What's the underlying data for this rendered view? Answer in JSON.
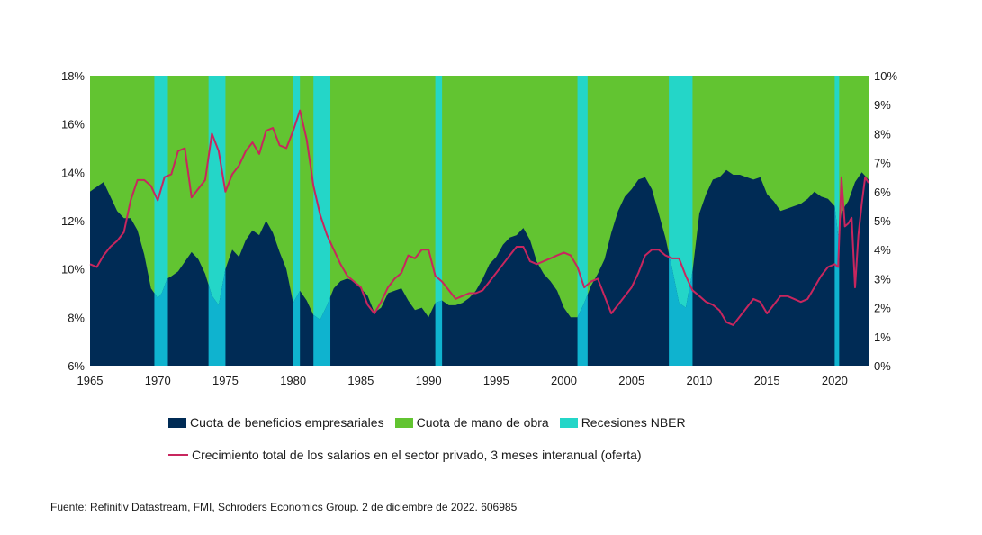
{
  "colors": {
    "profit_share": "#002b55",
    "labour_share": "#62c431",
    "recession": "#24d6c8",
    "recession_overlap": "#0fb3cf",
    "wage_line": "#c8265e"
  },
  "chart_data": {
    "type": "area",
    "title": "",
    "x_start": 1965,
    "x_end": 2022.5,
    "left_axis": {
      "min": 6,
      "max": 18,
      "ticks": [
        "6%",
        "8%",
        "10%",
        "12%",
        "14%",
        "16%",
        "18%"
      ]
    },
    "right_axis": {
      "min": 0,
      "max": 10,
      "ticks": [
        "0%",
        "1%",
        "2%",
        "3%",
        "4%",
        "5%",
        "6%",
        "7%",
        "8%",
        "9%",
        "10%"
      ]
    },
    "x_ticks": [
      "1965",
      "1970",
      "1975",
      "1980",
      "1985",
      "1990",
      "1995",
      "2000",
      "2005",
      "2010",
      "2015",
      "2020"
    ],
    "recessions": [
      [
        1969.75,
        1970.75
      ],
      [
        1973.75,
        1975.0
      ],
      [
        1980.0,
        1980.5
      ],
      [
        1981.5,
        1982.75
      ],
      [
        1990.5,
        1991.0
      ],
      [
        2001.0,
        2001.75
      ],
      [
        2007.75,
        2009.5
      ],
      [
        2020.0,
        2020.33
      ]
    ],
    "series": [
      {
        "name": "Cuota de beneficios empresariales",
        "axis": "left",
        "x": [
          1965.0,
          1965.5,
          1966.0,
          1966.5,
          1967.0,
          1967.5,
          1968.0,
          1968.5,
          1969.0,
          1969.5,
          1970.0,
          1970.3,
          1970.7,
          1971.0,
          1971.5,
          1972.0,
          1972.5,
          1973.0,
          1973.5,
          1974.0,
          1974.5,
          1975.0,
          1975.5,
          1976.0,
          1976.5,
          1977.0,
          1977.5,
          1978.0,
          1978.5,
          1979.0,
          1979.5,
          1980.0,
          1980.5,
          1981.0,
          1981.5,
          1982.0,
          1982.5,
          1983.0,
          1983.5,
          1984.0,
          1984.5,
          1985.0,
          1985.5,
          1986.0,
          1986.5,
          1987.0,
          1987.5,
          1988.0,
          1988.5,
          1989.0,
          1989.5,
          1990.0,
          1990.5,
          1991.0,
          1991.5,
          1992.0,
          1992.5,
          1993.0,
          1993.5,
          1994.0,
          1994.5,
          1995.0,
          1995.5,
          1996.0,
          1996.5,
          1997.0,
          1997.5,
          1998.0,
          1998.5,
          1999.0,
          1999.5,
          2000.0,
          2000.5,
          2001.0,
          2001.5,
          2002.0,
          2002.5,
          2003.0,
          2003.5,
          2004.0,
          2004.5,
          2005.0,
          2005.5,
          2006.0,
          2006.5,
          2007.0,
          2007.5,
          2008.0,
          2008.5,
          2009.0,
          2009.5,
          2010.0,
          2010.5,
          2011.0,
          2011.5,
          2012.0,
          2012.5,
          2013.0,
          2013.5,
          2014.0,
          2014.5,
          2015.0,
          2015.5,
          2016.0,
          2016.5,
          2017.0,
          2017.5,
          2018.0,
          2018.5,
          2019.0,
          2019.5,
          2020.0,
          2020.25,
          2020.5,
          2020.75,
          2021.0,
          2021.5,
          2022.0,
          2022.5
        ],
        "values": [
          13.2,
          13.4,
          13.6,
          13.0,
          12.4,
          12.1,
          12.1,
          11.6,
          10.6,
          9.2,
          8.8,
          9.0,
          9.6,
          9.7,
          9.9,
          10.3,
          10.7,
          10.4,
          9.8,
          8.9,
          8.5,
          10.0,
          10.8,
          10.5,
          11.2,
          11.6,
          11.4,
          12.0,
          11.5,
          10.7,
          10.0,
          8.6,
          9.1,
          8.7,
          8.1,
          7.9,
          8.5,
          9.2,
          9.5,
          9.6,
          9.5,
          9.2,
          8.9,
          8.2,
          8.4,
          9.0,
          9.1,
          9.2,
          8.7,
          8.3,
          8.4,
          8.0,
          8.6,
          8.7,
          8.5,
          8.5,
          8.6,
          8.8,
          9.1,
          9.6,
          10.2,
          10.5,
          11.0,
          11.3,
          11.4,
          11.7,
          11.2,
          10.3,
          9.8,
          9.5,
          9.1,
          8.4,
          8.0,
          8.0,
          8.6,
          9.3,
          9.8,
          10.4,
          11.5,
          12.4,
          13.0,
          13.3,
          13.7,
          13.8,
          13.3,
          12.3,
          11.3,
          10.0,
          8.6,
          8.4,
          9.9,
          12.3,
          13.1,
          13.7,
          13.8,
          14.1,
          13.9,
          13.9,
          13.8,
          13.7,
          13.8,
          13.1,
          12.8,
          12.4,
          12.5,
          12.6,
          12.7,
          12.9,
          13.2,
          13.0,
          12.9,
          12.6,
          11.4,
          12.3,
          12.6,
          12.8,
          13.6,
          14.0,
          13.7
        ]
      },
      {
        "name": "Crecimiento total de los salarios en el sector privado, 3 meses interanual (oferta)",
        "axis": "right",
        "x": [
          1965.0,
          1965.5,
          1966.0,
          1966.5,
          1967.0,
          1967.5,
          1968.0,
          1968.5,
          1969.0,
          1969.5,
          1970.0,
          1970.5,
          1971.0,
          1971.5,
          1972.0,
          1972.5,
          1973.0,
          1973.5,
          1974.0,
          1974.5,
          1975.0,
          1975.5,
          1976.0,
          1976.5,
          1977.0,
          1977.5,
          1978.0,
          1978.5,
          1979.0,
          1979.5,
          1980.0,
          1980.5,
          1981.0,
          1981.5,
          1982.0,
          1982.5,
          1983.0,
          1983.5,
          1984.0,
          1984.5,
          1985.0,
          1985.5,
          1986.0,
          1986.5,
          1987.0,
          1987.5,
          1988.0,
          1988.5,
          1989.0,
          1989.5,
          1990.0,
          1990.5,
          1991.0,
          1991.5,
          1992.0,
          1992.5,
          1993.0,
          1993.5,
          1994.0,
          1994.5,
          1995.0,
          1995.5,
          1996.0,
          1996.5,
          1997.0,
          1997.5,
          1998.0,
          1998.5,
          1999.0,
          1999.5,
          2000.0,
          2000.5,
          2001.0,
          2001.5,
          2002.0,
          2002.5,
          2003.0,
          2003.5,
          2004.0,
          2004.5,
          2005.0,
          2005.5,
          2006.0,
          2006.5,
          2007.0,
          2007.5,
          2008.0,
          2008.5,
          2009.0,
          2009.5,
          2010.0,
          2010.5,
          2011.0,
          2011.5,
          2012.0,
          2012.5,
          2013.0,
          2013.5,
          2014.0,
          2014.5,
          2015.0,
          2015.5,
          2016.0,
          2016.5,
          2017.0,
          2017.5,
          2018.0,
          2018.5,
          2019.0,
          2019.5,
          2020.0,
          2020.25,
          2020.5,
          2020.75,
          2021.0,
          2021.25,
          2021.5,
          2021.75,
          2022.0,
          2022.25,
          2022.5
        ],
        "values": [
          3.5,
          3.4,
          3.8,
          4.1,
          4.3,
          4.6,
          5.7,
          6.4,
          6.4,
          6.2,
          5.7,
          6.5,
          6.6,
          7.4,
          7.5,
          5.8,
          6.1,
          6.4,
          8.0,
          7.4,
          6.0,
          6.6,
          6.9,
          7.4,
          7.7,
          7.3,
          8.1,
          8.2,
          7.6,
          7.5,
          8.1,
          8.8,
          7.8,
          6.2,
          5.2,
          4.5,
          4.0,
          3.5,
          3.1,
          2.9,
          2.7,
          2.1,
          1.8,
          2.2,
          2.7,
          3.0,
          3.2,
          3.8,
          3.7,
          4.0,
          4.0,
          3.1,
          2.9,
          2.6,
          2.3,
          2.4,
          2.5,
          2.5,
          2.6,
          2.9,
          3.2,
          3.5,
          3.8,
          4.1,
          4.1,
          3.6,
          3.5,
          3.6,
          3.7,
          3.8,
          3.9,
          3.8,
          3.4,
          2.7,
          2.9,
          3.0,
          2.4,
          1.8,
          2.1,
          2.4,
          2.7,
          3.2,
          3.8,
          4.0,
          4.0,
          3.8,
          3.7,
          3.7,
          3.1,
          2.6,
          2.4,
          2.2,
          2.1,
          1.9,
          1.5,
          1.4,
          1.7,
          2.0,
          2.3,
          2.2,
          1.8,
          2.1,
          2.4,
          2.4,
          2.3,
          2.2,
          2.3,
          2.7,
          3.1,
          3.4,
          3.5,
          3.4,
          6.5,
          4.8,
          4.9,
          5.1,
          2.7,
          4.5,
          5.6,
          6.5,
          6.3
        ]
      }
    ]
  },
  "legend": {
    "profit": "Cuota de beneficios empresariales",
    "labour": "Cuota de mano de obra",
    "recession": "Recesiones NBER",
    "wage": "Crecimiento total de los salarios en el sector privado, 3 meses interanual (oferta)"
  },
  "source": "Fuente: Refinitiv Datastream, FMI, Schroders Economics Group. 2 de diciembre de 2022. 606985"
}
